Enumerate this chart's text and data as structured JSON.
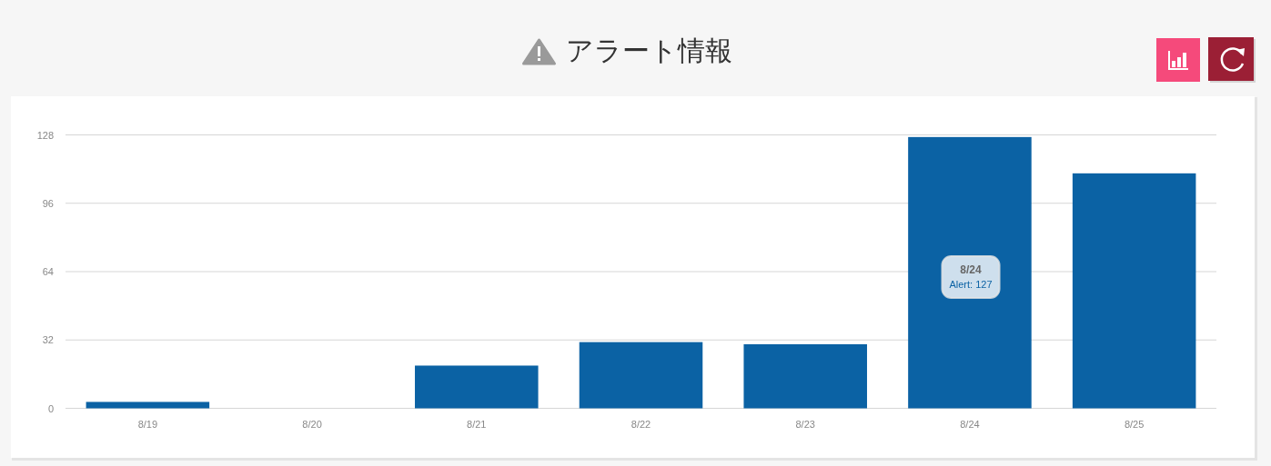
{
  "chart_data": {
    "type": "bar",
    "title": "アラート情報",
    "categories": [
      "8/19",
      "8/20",
      "8/21",
      "8/22",
      "8/23",
      "8/24",
      "8/25"
    ],
    "values": [
      3,
      0,
      20,
      31,
      30,
      127,
      110
    ],
    "color": "#0b62a4",
    "ylim": [
      0,
      128
    ],
    "yticks": [
      0,
      32,
      64,
      96,
      128
    ],
    "grid": "y",
    "annotations": [
      "8/24",
      "Alert: 127"
    ]
  }
}
